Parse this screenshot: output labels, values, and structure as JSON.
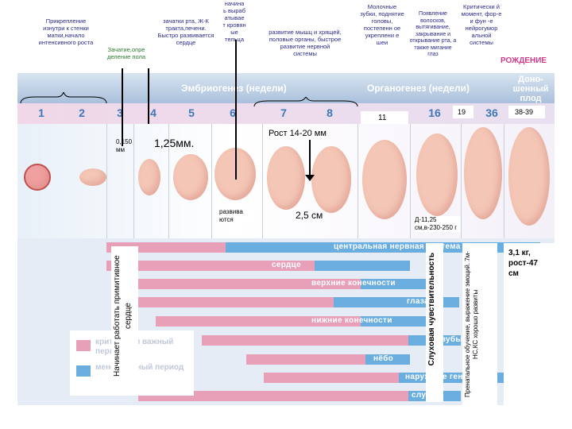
{
  "headers": {
    "embryogenesis": "Эмбриогенез (недели)",
    "organogenesis": "Органогенез (недели)",
    "fetus": "Доно-шенный плод",
    "birth": "РОЖДЕНИЕ"
  },
  "weeks": [
    "1",
    "2",
    "3",
    "4",
    "5",
    "6",
    "7",
    "8",
    "11",
    "16",
    "19",
    "36",
    "38-39"
  ],
  "top_notes": {
    "attachment": "Прикрепление изнутри к стенки матки,начало интенсивного роста",
    "conception": "Зачатие,опре деление пола",
    "mouth": "зачатки рта, Ж-К тракта,печени. Быстро развивается сердце",
    "blood": "начина ь выраб атывае т кровян ые тельца",
    "muscles": "развитие мышц и хрящей, половые органы, быстрое развитие нервной системы",
    "teeth": "Молочные зубки, поднятие головы, постепенн ое укреплени е шеи",
    "hair": "Появление волосков, вытягивание, закрывание и открывание рта, а также мигание глаз",
    "critical": "Критически й момент, фор-е и фун -е нейрогумор альной системы"
  },
  "annotations": {
    "size_0150": "0,150 мм",
    "size_125": "1,25мм.",
    "develop": "развива ются",
    "growth": "Рост 14-20 мм",
    "size_25": "2,5 см",
    "size_d": "Д-11,25 см,в-230-250 г",
    "birth_weight": "3,1 кг, рост-47 см"
  },
  "bars": {
    "cns": "центральная нервная система",
    "heart": "сердце",
    "upper": "верхние конечности",
    "eyes": "глаза",
    "lower": "нижние конечности",
    "teeth": "зубы",
    "palate": "нёбо",
    "genitals": "наружные гениталии",
    "hearing": "слух"
  },
  "legend": {
    "critical": "критически важный период",
    "less": "менее важный период"
  },
  "vertical_texts": {
    "heart_start": "Начинает работать примитивное сердце",
    "hearing": "Слуховая чувствительность",
    "prenatal": "Пренатальное обучение, выражение эмоций. 7м-НС,КС хорошо развиты"
  }
}
